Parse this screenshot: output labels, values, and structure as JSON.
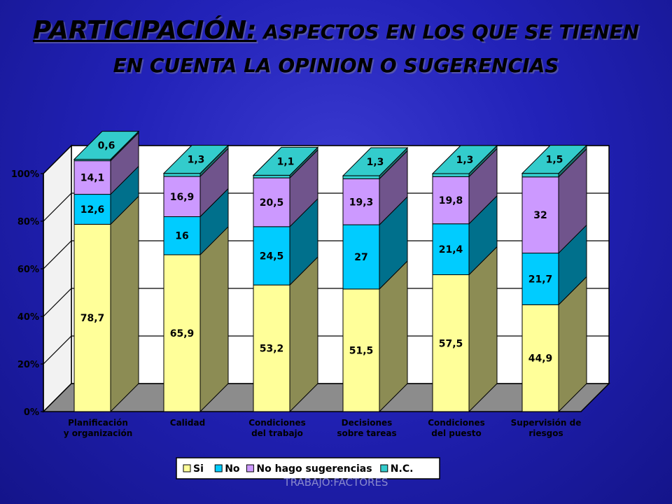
{
  "slide": {
    "title_main": "PARTICIPACIÓN:",
    "title_rest": " ASPECTOS EN LOS QUE SE TIENEN EN CUENTA LA OPINION O SUGERENCIAS",
    "footer": "TRABAJO:FACTORES"
  },
  "chart_data": {
    "type": "bar",
    "stacked": true,
    "percent": true,
    "three_d": true,
    "categories": [
      "Planificación y organización",
      "Calidad",
      "Condiciones del trabajo",
      "Decisiones sobre tareas",
      "Condiciones del puesto",
      "Supervisión de riesgos"
    ],
    "series": [
      {
        "name": "Si",
        "color": "#ffff99",
        "values": [
          78.7,
          65.9,
          53.2,
          51.5,
          57.5,
          44.9
        ],
        "labels": [
          "78,7",
          "65,9",
          "53,2",
          "51,5",
          "57,5",
          "44,9"
        ]
      },
      {
        "name": "No",
        "color": "#00ccff",
        "values": [
          12.6,
          16,
          24.5,
          27,
          21.4,
          21.7
        ],
        "labels": [
          "12,6",
          "16",
          "24,5",
          "27",
          "21,4",
          "21,7"
        ]
      },
      {
        "name": "No hago sugerencias",
        "color": "#cc99ff",
        "values": [
          14.1,
          16.9,
          20.5,
          19.3,
          19.8,
          32
        ],
        "labels": [
          "14,1",
          "16,9",
          "20,5",
          "19,3",
          "19,8",
          "32"
        ]
      },
      {
        "name": "N.C.",
        "color": "#33cccc",
        "values": [
          0.6,
          1.3,
          1.1,
          1.3,
          1.3,
          1.5
        ],
        "labels": [
          "0,6",
          "1,3",
          "1,1",
          "1,3",
          "1,3",
          "1,5"
        ]
      }
    ],
    "y_ticks": [
      "0%",
      "20%",
      "40%",
      "60%",
      "80%",
      "100%"
    ],
    "ylim": [
      0,
      100
    ],
    "legend_position": "bottom",
    "grid": true
  }
}
